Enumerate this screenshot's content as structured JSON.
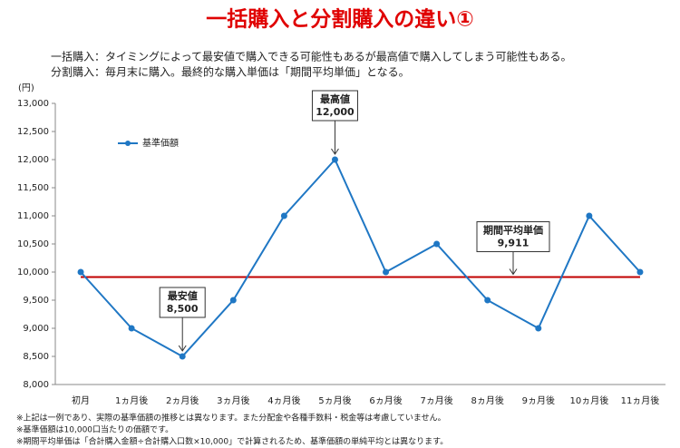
{
  "chart_data": {
    "type": "line",
    "title": "一括購入と分割購入の違い①",
    "subtitle": [
      "一括購入：タイミングによって最安値で購入できる可能性もあるが最高値で購入してしまう可能性もある。",
      "分割購入：毎月末に購入。最終的な購入単価は「期間平均単価」となる。"
    ],
    "y_unit": "(円)",
    "categories": [
      "初月",
      "1ヵ月後",
      "2ヵ月後",
      "3ヵ月後",
      "4ヵ月後",
      "5ヵ月後",
      "6ヵ月後",
      "7ヵ月後",
      "8ヵ月後",
      "9ヵ月後",
      "10ヵ月後",
      "11ヵ月後"
    ],
    "series": [
      {
        "name": "基準価額",
        "color": "#1f77c4",
        "values": [
          10000,
          9000,
          8500,
          9500,
          11000,
          12000,
          10000,
          10500,
          9500,
          9000,
          11000,
          10000
        ]
      }
    ],
    "average": {
      "name": "期間平均単価",
      "value": 9911,
      "value_label": "9,911",
      "color": "#c00000"
    },
    "annotations": [
      {
        "label": "最高値",
        "value": 12000,
        "value_label": "12,000",
        "index": 5
      },
      {
        "label": "最安値",
        "value": 8500,
        "value_label": "8,500",
        "index": 2
      }
    ],
    "ylim": [
      8000,
      13000
    ],
    "yticks": [
      {
        "value": 8000,
        "label": "8,000"
      },
      {
        "value": 8500,
        "label": "8,500"
      },
      {
        "value": 9000,
        "label": "9,000"
      },
      {
        "value": 9500,
        "label": "9,500"
      },
      {
        "value": 10000,
        "label": "10,000"
      },
      {
        "value": 10500,
        "label": "10,500"
      },
      {
        "value": 11000,
        "label": "11,000"
      },
      {
        "value": 11500,
        "label": "11,500"
      },
      {
        "value": 12000,
        "label": "12,000"
      },
      {
        "value": 12500,
        "label": "12,500"
      },
      {
        "value": 13000,
        "label": "13,000"
      }
    ],
    "notes": [
      "※上記は一例であり、実際の基準価額の推移とは異なります。また分配金や各種手数料・税金等は考慮していません。",
      "※基準価額は10,000口当たりの価額です。",
      "※期間平均単価は「合計購入金額÷合計購入口数×10,000」で計算されるため、基準価額の単純平均とは異なります。"
    ]
  }
}
